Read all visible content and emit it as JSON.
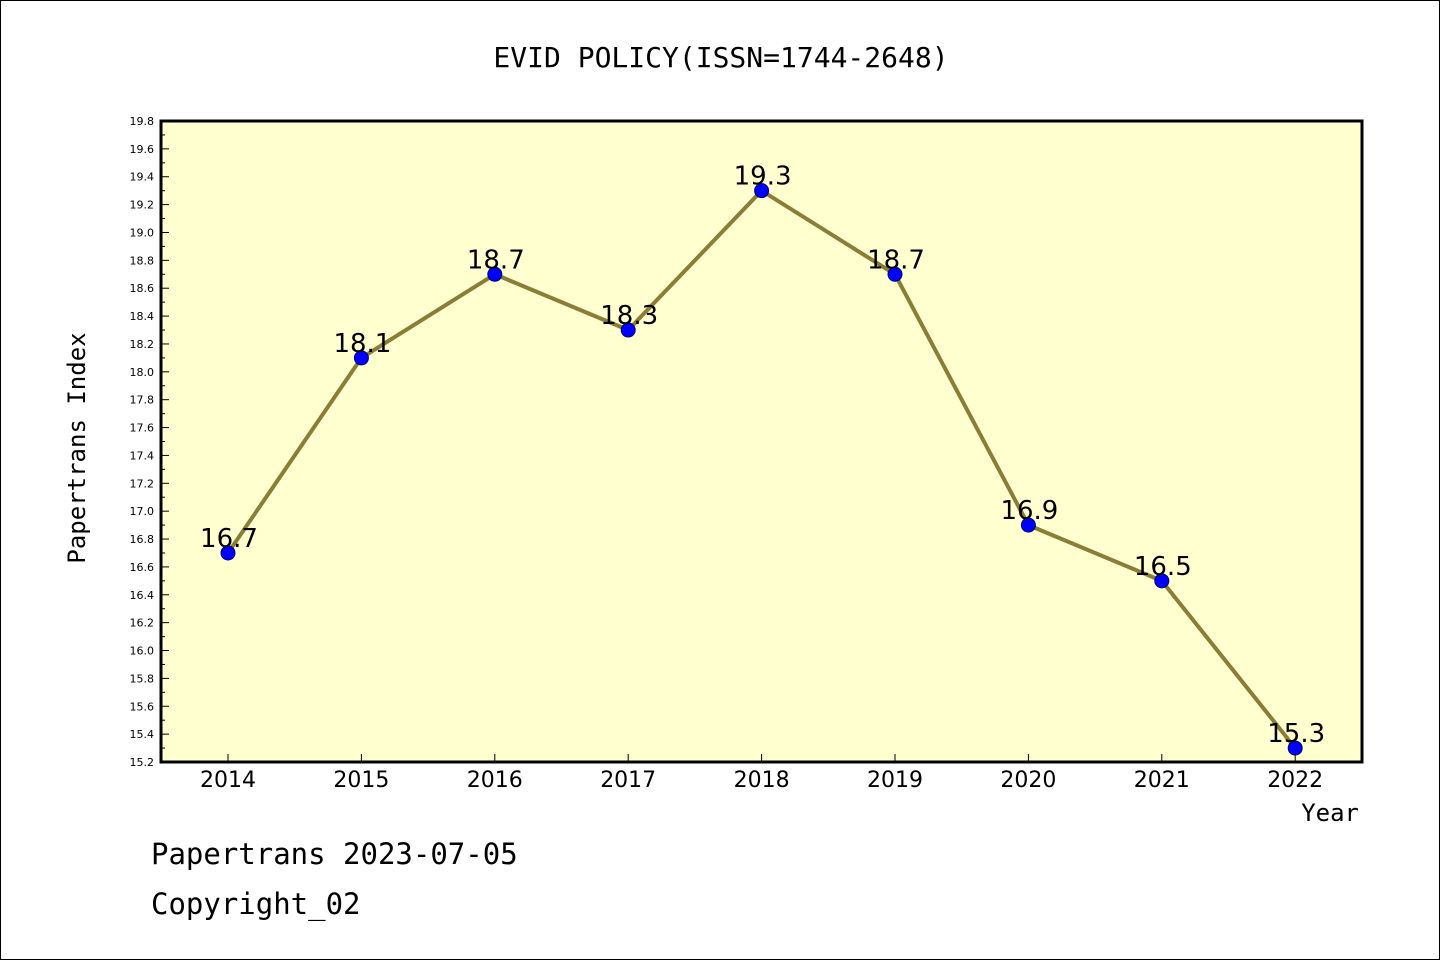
{
  "chart_data": {
    "type": "line",
    "title": "EVID POLICY(ISSN=1744-2648)",
    "xlabel": "Year",
    "ylabel": "Papertrans Index",
    "categories": [
      "2014",
      "2015",
      "2016",
      "2017",
      "2018",
      "2019",
      "2020",
      "2021",
      "2022"
    ],
    "series": [
      {
        "values": [
          16.7,
          18.1,
          18.7,
          18.3,
          19.3,
          18.7,
          16.9,
          16.5,
          15.3
        ],
        "labels": [
          "16.7",
          "18.1",
          "18.7",
          "18.3",
          "19.3",
          "18.7",
          "16.9",
          "16.5",
          "15.3"
        ]
      }
    ],
    "ylim": [
      15.2,
      19.8
    ],
    "yticks": [
      "15.2",
      "15.4",
      "15.6",
      "15.8",
      "16.0",
      "16.2",
      "16.4",
      "16.6",
      "16.8",
      "17.0",
      "17.2",
      "17.4",
      "17.6",
      "17.8",
      "18.0",
      "18.2",
      "18.4",
      "18.6",
      "18.8",
      "19.0",
      "19.2",
      "19.4",
      "19.6",
      "19.8"
    ],
    "grid": false,
    "legend": "none",
    "colors": {
      "plot_background": "#ffffd0",
      "line": "#8b7d35",
      "marker": "#0000ff"
    }
  },
  "footer": {
    "line1": "Papertrans 2023-07-05",
    "line2": "Copyright_02"
  }
}
